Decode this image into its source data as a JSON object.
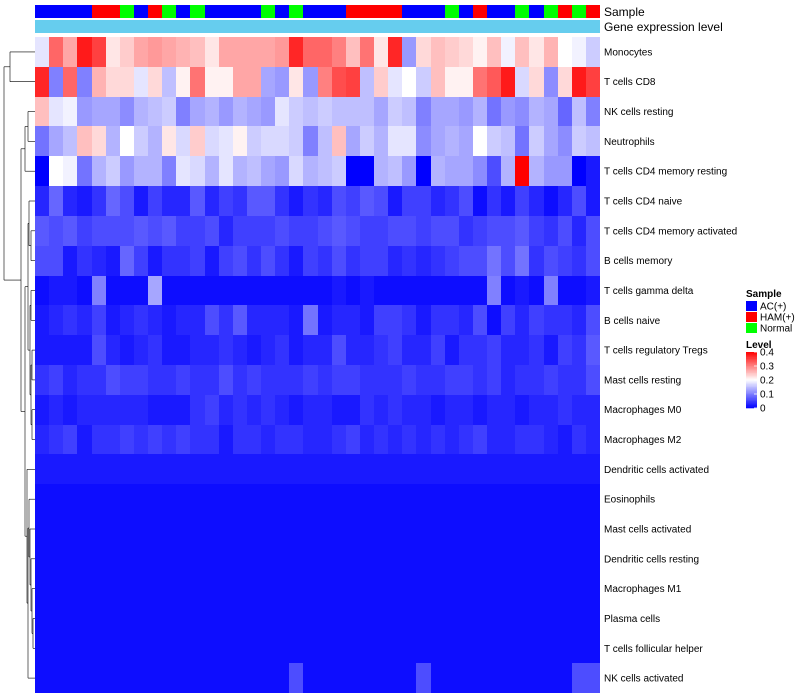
{
  "chart_data": {
    "type": "heatmap",
    "title": "",
    "n_samples": 40,
    "annotations": {
      "sample_label": "Sample",
      "expression_label": "Gene expression level",
      "sample_groups": [
        "AC(+)",
        "AC(+)",
        "AC(+)",
        "AC(+)",
        "HAM(+)",
        "HAM(+)",
        "Normal",
        "AC(+)",
        "HAM(+)",
        "Normal",
        "AC(+)",
        "Normal",
        "AC(+)",
        "AC(+)",
        "AC(+)",
        "AC(+)",
        "Normal",
        "AC(+)",
        "Normal",
        "AC(+)",
        "AC(+)",
        "AC(+)",
        "HAM(+)",
        "HAM(+)",
        "HAM(+)",
        "HAM(+)",
        "AC(+)",
        "AC(+)",
        "AC(+)",
        "Normal",
        "AC(+)",
        "HAM(+)",
        "AC(+)",
        "AC(+)",
        "Normal",
        "AC(+)",
        "Normal",
        "HAM(+)",
        "Normal",
        "HAM(+)"
      ]
    },
    "cell_types": [
      "Monocytes",
      "T cells CD8",
      "NK cells resting",
      "Neutrophils",
      "T cells CD4 memory resting",
      "T cells CD4 naive",
      "T cells CD4 memory activated",
      "B cells memory",
      "T cells gamma delta",
      "B cells naive",
      "T cells regulatory  Tregs",
      "Mast cells resting",
      "Macrophages M0",
      "Macrophages M2",
      "Dendritic cells activated",
      "Eosinophils",
      "Mast cells activated",
      "Dendritic cells resting",
      "Macrophages M1",
      "Plasma cells",
      "T cells follicular helper",
      "NK cells activated"
    ],
    "values": [
      [
        0.18,
        0.32,
        0.27,
        0.38,
        0.35,
        0.22,
        0.24,
        0.27,
        0.28,
        0.27,
        0.26,
        0.25,
        0.22,
        0.27,
        0.27,
        0.27,
        0.27,
        0.28,
        0.37,
        0.32,
        0.32,
        0.3,
        0.25,
        0.31,
        0.22,
        0.37,
        0.12,
        0.23,
        0.25,
        0.24,
        0.23,
        0.21,
        0.25,
        0.19,
        0.25,
        0.22,
        0.26,
        0.2,
        0.19,
        0.16
      ],
      [
        0.37,
        0.1,
        0.32,
        0.1,
        0.26,
        0.23,
        0.23,
        0.18,
        0.23,
        0.15,
        0.21,
        0.31,
        0.21,
        0.21,
        0.27,
        0.27,
        0.13,
        0.12,
        0.22,
        0.12,
        0.3,
        0.34,
        0.35,
        0.15,
        0.24,
        0.18,
        0.2,
        0.16,
        0.25,
        0.21,
        0.21,
        0.31,
        0.33,
        0.38,
        0.17,
        0.23,
        0.11,
        0.23,
        0.38,
        0.35
      ],
      [
        0.25,
        0.18,
        0.19,
        0.12,
        0.13,
        0.13,
        0.11,
        0.14,
        0.15,
        0.16,
        0.1,
        0.13,
        0.14,
        0.12,
        0.14,
        0.13,
        0.12,
        0.18,
        0.16,
        0.15,
        0.16,
        0.15,
        0.15,
        0.15,
        0.13,
        0.16,
        0.15,
        0.1,
        0.13,
        0.13,
        0.12,
        0.14,
        0.09,
        0.12,
        0.11,
        0.14,
        0.13,
        0.08,
        0.15,
        0.1
      ],
      [
        0.09,
        0.13,
        0.15,
        0.25,
        0.23,
        0.14,
        0.2,
        0.16,
        0.14,
        0.22,
        0.17,
        0.24,
        0.17,
        0.18,
        0.21,
        0.16,
        0.17,
        0.17,
        0.16,
        0.1,
        0.15,
        0.25,
        0.13,
        0.16,
        0.14,
        0.18,
        0.18,
        0.11,
        0.13,
        0.14,
        0.13,
        0.2,
        0.16,
        0.15,
        0.09,
        0.16,
        0.13,
        0.11,
        0.16,
        0.15
      ],
      [
        0.0,
        0.2,
        0.19,
        0.09,
        0.14,
        0.16,
        0.12,
        0.14,
        0.14,
        0.1,
        0.18,
        0.17,
        0.14,
        0.18,
        0.14,
        0.15,
        0.13,
        0.12,
        0.17,
        0.14,
        0.15,
        0.16,
        0.0,
        0.0,
        0.14,
        0.15,
        0.12,
        0.0,
        0.14,
        0.13,
        0.13,
        0.11,
        0.06,
        0.14,
        0.4,
        0.14,
        0.12,
        0.12,
        0.0,
        0.02
      ],
      [
        0.03,
        0.08,
        0.03,
        0.02,
        0.04,
        0.08,
        0.06,
        0.02,
        0.05,
        0.03,
        0.03,
        0.07,
        0.03,
        0.05,
        0.04,
        0.07,
        0.07,
        0.04,
        0.02,
        0.04,
        0.03,
        0.06,
        0.05,
        0.07,
        0.06,
        0.02,
        0.05,
        0.05,
        0.03,
        0.04,
        0.06,
        0.01,
        0.04,
        0.02,
        0.05,
        0.03,
        0.01,
        0.03,
        0.06,
        0.02
      ],
      [
        0.07,
        0.06,
        0.07,
        0.05,
        0.06,
        0.06,
        0.06,
        0.07,
        0.06,
        0.07,
        0.05,
        0.05,
        0.06,
        0.03,
        0.05,
        0.05,
        0.05,
        0.06,
        0.05,
        0.05,
        0.06,
        0.07,
        0.06,
        0.05,
        0.05,
        0.06,
        0.06,
        0.05,
        0.06,
        0.06,
        0.04,
        0.05,
        0.06,
        0.06,
        0.07,
        0.05,
        0.04,
        0.06,
        0.03,
        0.06
      ],
      [
        0.06,
        0.06,
        0.02,
        0.04,
        0.03,
        0.02,
        0.08,
        0.05,
        0.02,
        0.04,
        0.04,
        0.05,
        0.02,
        0.05,
        0.06,
        0.04,
        0.06,
        0.04,
        0.02,
        0.05,
        0.04,
        0.06,
        0.04,
        0.05,
        0.05,
        0.03,
        0.04,
        0.03,
        0.04,
        0.05,
        0.06,
        0.06,
        0.09,
        0.06,
        0.09,
        0.04,
        0.06,
        0.05,
        0.04,
        0.06
      ],
      [
        0.01,
        0.02,
        0.02,
        0.01,
        0.1,
        0.01,
        0.01,
        0.01,
        0.13,
        0.01,
        0.01,
        0.01,
        0.01,
        0.01,
        0.01,
        0.01,
        0.01,
        0.01,
        0.01,
        0.01,
        0.01,
        0.02,
        0.01,
        0.02,
        0.01,
        0.01,
        0.01,
        0.01,
        0.01,
        0.01,
        0.01,
        0.01,
        0.1,
        0.01,
        0.02,
        0.01,
        0.1,
        0.01,
        0.01,
        0.02
      ],
      [
        0.02,
        0.03,
        0.04,
        0.03,
        0.05,
        0.02,
        0.03,
        0.04,
        0.03,
        0.02,
        0.03,
        0.03,
        0.06,
        0.04,
        0.07,
        0.03,
        0.03,
        0.03,
        0.02,
        0.09,
        0.02,
        0.03,
        0.03,
        0.02,
        0.05,
        0.05,
        0.04,
        0.02,
        0.04,
        0.04,
        0.03,
        0.06,
        0.01,
        0.05,
        0.03,
        0.05,
        0.04,
        0.04,
        0.03,
        0.06
      ],
      [
        0.02,
        0.02,
        0.02,
        0.02,
        0.06,
        0.03,
        0.02,
        0.03,
        0.04,
        0.02,
        0.02,
        0.03,
        0.03,
        0.04,
        0.03,
        0.02,
        0.03,
        0.04,
        0.02,
        0.03,
        0.03,
        0.06,
        0.03,
        0.03,
        0.04,
        0.05,
        0.03,
        0.03,
        0.05,
        0.02,
        0.04,
        0.04,
        0.05,
        0.03,
        0.03,
        0.04,
        0.02,
        0.05,
        0.04,
        0.07
      ],
      [
        0.04,
        0.05,
        0.03,
        0.04,
        0.04,
        0.06,
        0.05,
        0.05,
        0.04,
        0.04,
        0.05,
        0.04,
        0.04,
        0.06,
        0.04,
        0.05,
        0.04,
        0.04,
        0.04,
        0.05,
        0.04,
        0.05,
        0.05,
        0.04,
        0.04,
        0.04,
        0.05,
        0.04,
        0.04,
        0.05,
        0.05,
        0.04,
        0.05,
        0.03,
        0.04,
        0.04,
        0.05,
        0.04,
        0.04,
        0.06
      ],
      [
        0.02,
        0.03,
        0.02,
        0.03,
        0.03,
        0.03,
        0.03,
        0.03,
        0.02,
        0.02,
        0.02,
        0.04,
        0.05,
        0.03,
        0.04,
        0.03,
        0.04,
        0.03,
        0.02,
        0.03,
        0.03,
        0.02,
        0.02,
        0.04,
        0.03,
        0.04,
        0.03,
        0.03,
        0.02,
        0.03,
        0.03,
        0.02,
        0.03,
        0.03,
        0.02,
        0.03,
        0.03,
        0.04,
        0.03,
        0.03
      ],
      [
        0.03,
        0.04,
        0.05,
        0.02,
        0.04,
        0.04,
        0.05,
        0.04,
        0.05,
        0.04,
        0.05,
        0.04,
        0.04,
        0.02,
        0.04,
        0.04,
        0.03,
        0.04,
        0.04,
        0.03,
        0.03,
        0.04,
        0.05,
        0.03,
        0.04,
        0.03,
        0.04,
        0.03,
        0.04,
        0.03,
        0.04,
        0.05,
        0.03,
        0.03,
        0.04,
        0.04,
        0.03,
        0.02,
        0.04,
        0.03
      ],
      [
        0.02,
        0.02,
        0.02,
        0.02,
        0.02,
        0.02,
        0.02,
        0.02,
        0.02,
        0.02,
        0.02,
        0.02,
        0.02,
        0.02,
        0.02,
        0.02,
        0.02,
        0.02,
        0.02,
        0.02,
        0.02,
        0.02,
        0.02,
        0.02,
        0.02,
        0.02,
        0.02,
        0.02,
        0.02,
        0.02,
        0.02,
        0.02,
        0.02,
        0.02,
        0.02,
        0.02,
        0.02,
        0.02,
        0.02,
        0.02
      ],
      [
        0.01,
        0.01,
        0.01,
        0.01,
        0.01,
        0.01,
        0.01,
        0.01,
        0.01,
        0.01,
        0.01,
        0.01,
        0.01,
        0.01,
        0.01,
        0.01,
        0.01,
        0.01,
        0.01,
        0.01,
        0.01,
        0.01,
        0.01,
        0.01,
        0.01,
        0.01,
        0.01,
        0.01,
        0.01,
        0.01,
        0.01,
        0.01,
        0.01,
        0.01,
        0.01,
        0.01,
        0.01,
        0.01,
        0.01,
        0.01
      ],
      [
        0.01,
        0.01,
        0.01,
        0.01,
        0.01,
        0.01,
        0.01,
        0.01,
        0.01,
        0.01,
        0.01,
        0.01,
        0.01,
        0.01,
        0.01,
        0.01,
        0.01,
        0.01,
        0.01,
        0.01,
        0.01,
        0.01,
        0.01,
        0.01,
        0.01,
        0.01,
        0.01,
        0.01,
        0.01,
        0.01,
        0.01,
        0.01,
        0.01,
        0.01,
        0.01,
        0.01,
        0.01,
        0.01,
        0.01,
        0.01
      ],
      [
        0.01,
        0.01,
        0.01,
        0.01,
        0.01,
        0.01,
        0.01,
        0.01,
        0.01,
        0.01,
        0.01,
        0.01,
        0.01,
        0.01,
        0.01,
        0.01,
        0.01,
        0.01,
        0.01,
        0.01,
        0.01,
        0.01,
        0.01,
        0.01,
        0.01,
        0.01,
        0.01,
        0.01,
        0.01,
        0.01,
        0.01,
        0.01,
        0.01,
        0.01,
        0.01,
        0.01,
        0.01,
        0.01,
        0.01,
        0.01
      ],
      [
        0.01,
        0.01,
        0.01,
        0.01,
        0.01,
        0.01,
        0.01,
        0.01,
        0.01,
        0.01,
        0.01,
        0.01,
        0.01,
        0.01,
        0.01,
        0.01,
        0.01,
        0.01,
        0.01,
        0.01,
        0.01,
        0.01,
        0.01,
        0.01,
        0.01,
        0.01,
        0.01,
        0.01,
        0.01,
        0.01,
        0.01,
        0.01,
        0.01,
        0.01,
        0.01,
        0.01,
        0.01,
        0.01,
        0.01,
        0.01
      ],
      [
        0.01,
        0.01,
        0.01,
        0.01,
        0.01,
        0.01,
        0.01,
        0.01,
        0.01,
        0.01,
        0.01,
        0.01,
        0.01,
        0.01,
        0.01,
        0.01,
        0.01,
        0.01,
        0.01,
        0.01,
        0.01,
        0.01,
        0.01,
        0.01,
        0.01,
        0.01,
        0.01,
        0.01,
        0.01,
        0.01,
        0.01,
        0.01,
        0.01,
        0.01,
        0.01,
        0.01,
        0.01,
        0.01,
        0.01,
        0.01
      ],
      [
        0.01,
        0.01,
        0.01,
        0.01,
        0.01,
        0.01,
        0.01,
        0.01,
        0.01,
        0.01,
        0.01,
        0.01,
        0.01,
        0.01,
        0.01,
        0.01,
        0.01,
        0.01,
        0.01,
        0.01,
        0.01,
        0.01,
        0.01,
        0.01,
        0.01,
        0.01,
        0.01,
        0.01,
        0.01,
        0.01,
        0.01,
        0.01,
        0.01,
        0.01,
        0.01,
        0.01,
        0.01,
        0.01,
        0.01,
        0.01
      ],
      [
        0.01,
        0.01,
        0.01,
        0.01,
        0.01,
        0.01,
        0.01,
        0.01,
        0.01,
        0.01,
        0.01,
        0.01,
        0.01,
        0.01,
        0.01,
        0.01,
        0.01,
        0.01,
        0.06,
        0.01,
        0.01,
        0.01,
        0.01,
        0.01,
        0.01,
        0.01,
        0.01,
        0.06,
        0.01,
        0.01,
        0.01,
        0.01,
        0.01,
        0.01,
        0.01,
        0.01,
        0.01,
        0.01,
        0.06,
        0.06
      ]
    ],
    "legend": {
      "sample_title": "Sample",
      "sample_entries": [
        {
          "label": "AC(+)",
          "color": "#0000ff"
        },
        {
          "label": "HAM(+)",
          "color": "#ff0000"
        },
        {
          "label": "Normal",
          "color": "#00ff00"
        }
      ],
      "level_title": "Level",
      "level_ticks": [
        "0.4",
        "0.3",
        "0.2",
        "0.1",
        "0"
      ],
      "level_range": [
        0,
        0.4
      ],
      "placement": "right"
    },
    "colors": {
      "low": "#0000ff",
      "mid": "#ffffff",
      "high": "#ff0000",
      "expression_bar": "#66cdee"
    }
  }
}
